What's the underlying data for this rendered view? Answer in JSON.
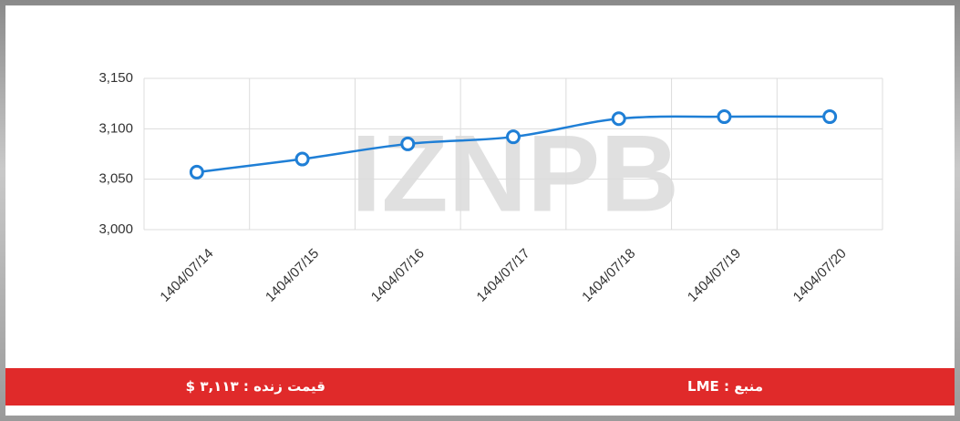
{
  "chart_data": {
    "type": "line",
    "watermark": "IZNPB",
    "categories": [
      "1404/07/14",
      "1404/07/15",
      "1404/07/16",
      "1404/07/17",
      "1404/07/18",
      "1404/07/19",
      "1404/07/20"
    ],
    "series": [
      {
        "name": "LME",
        "color": "#1f7fd6",
        "values": [
          3057,
          3070,
          3085,
          3092,
          3110,
          3112,
          3112
        ]
      }
    ],
    "ylim": [
      3000,
      3150
    ],
    "yticks": [
      {
        "value": 3000,
        "label": "3,000"
      },
      {
        "value": 3050,
        "label": "3,050"
      },
      {
        "value": 3100,
        "label": "3,100"
      },
      {
        "value": 3150,
        "label": "3,150"
      }
    ],
    "grid": true
  },
  "footer": {
    "source": "منبع : LME",
    "live_price": "قیمت زنده : ۳,۱۱۳ $"
  }
}
